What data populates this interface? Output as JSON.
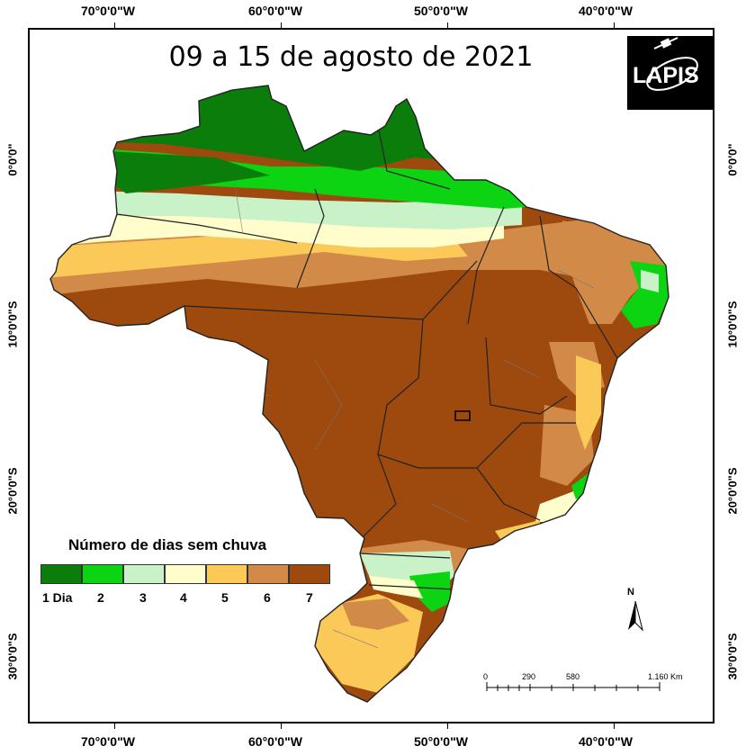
{
  "map": {
    "title": "09 a 15 de agosto de 2021",
    "logo_text": "LAPIS",
    "longitude_labels": [
      "70°0'0\"W",
      "60°0'0\"W",
      "50°0'0\"W",
      "40°0'0\"W"
    ],
    "latitude_labels": [
      "0°0'0\"",
      "10°0'0\"S",
      "20°0'0\"S",
      "30°0'0\"S"
    ],
    "legend": {
      "title": "Número de dias sem chuva",
      "classes": [
        {
          "label": "1 Dia",
          "color": "#0a7d0a"
        },
        {
          "label": "2",
          "color": "#0dd413"
        },
        {
          "label": "3",
          "color": "#c9f2c8"
        },
        {
          "label": "4",
          "color": "#fffdcc"
        },
        {
          "label": "5",
          "color": "#fbc957"
        },
        {
          "label": "6",
          "color": "#d18a48"
        },
        {
          "label": "7",
          "color": "#9e4a0e"
        }
      ]
    },
    "scale_bar": {
      "labels": [
        "0",
        "290",
        "580",
        "1.160 Km"
      ]
    },
    "north_arrow": {
      "label": "N"
    }
  }
}
